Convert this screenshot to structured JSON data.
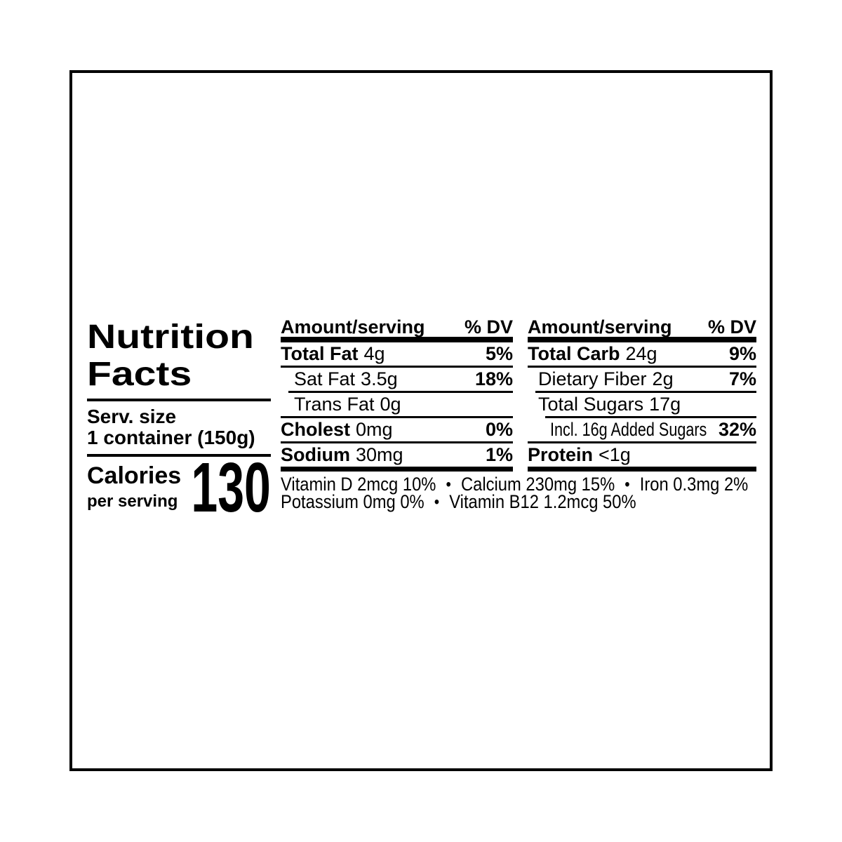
{
  "title": {
    "line1": "Nutrition",
    "line2": "Facts"
  },
  "serving": {
    "label": "Serv. size",
    "value": "1 container (150g)"
  },
  "calories": {
    "label": "Calories",
    "sublabel": "per serving",
    "value": "130"
  },
  "columns": [
    {
      "header": {
        "amount": "Amount/serving",
        "dv": "% DV"
      },
      "rows": [
        {
          "name": "Total Fat",
          "amount": "4g",
          "dv": "5%"
        },
        {
          "name": "Sat Fat",
          "amount": "3.5g",
          "dv": "18%"
        },
        {
          "name": "Trans Fat",
          "amount": "0g",
          "dv": ""
        },
        {
          "name": "Cholest",
          "amount": "0mg",
          "dv": "0%"
        },
        {
          "name": "Sodium",
          "amount": "30mg",
          "dv": "1%"
        }
      ]
    },
    {
      "header": {
        "amount": "Amount/serving",
        "dv": "% DV"
      },
      "rows": [
        {
          "name": "Total Carb",
          "amount": "24g",
          "dv": "9%"
        },
        {
          "name": "Dietary Fiber",
          "amount": "2g",
          "dv": "7%"
        },
        {
          "name": "Total Sugars",
          "amount": "17g",
          "dv": ""
        },
        {
          "name": "Incl. 16g Added Sugars",
          "amount": "",
          "dv": "32%"
        },
        {
          "name": "Protein",
          "amount": "<1g",
          "dv": ""
        }
      ]
    }
  ],
  "micronutrients": {
    "separator": "•",
    "line1": [
      "Vitamin D 2mcg 10%",
      "Calcium 230mg 15%",
      "Iron 0.3mg 2%"
    ],
    "line2": [
      "Potassium 0mg 0%",
      "Vitamin B12 1.2mcg 50%"
    ]
  },
  "colors": {
    "ink": "#000000",
    "background": "#ffffff"
  }
}
